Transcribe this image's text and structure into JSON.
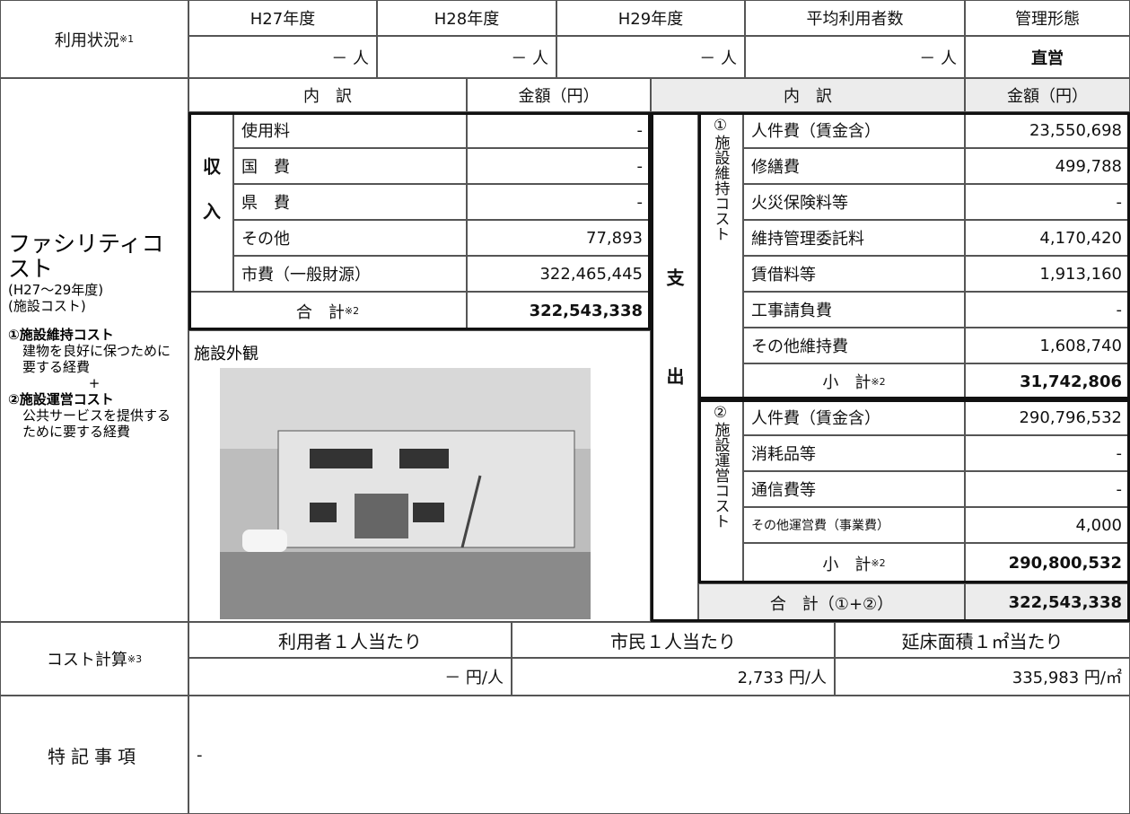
{
  "usage": {
    "label": "利用状況",
    "note": "※1",
    "headers": [
      "H27年度",
      "H28年度",
      "H29年度",
      "平均利用者数",
      "管理形態"
    ],
    "values": [
      "－ 人",
      "－ 人",
      "－ 人",
      "－ 人",
      "直営"
    ]
  },
  "facility": {
    "title": "ファシリティコスト",
    "period": "(H27～29年度)",
    "sub": "(施設コスト)",
    "lines": [
      "①施設維持コスト",
      "建物を良好に保つために要する経費",
      "+",
      "②施設運営コスト",
      "公共サービスを提供するために要する経費"
    ]
  },
  "revenue": {
    "headers": [
      "内　訳",
      "金額（円）"
    ],
    "side": "収入",
    "items": [
      {
        "name": "使用料",
        "amount": "-"
      },
      {
        "name": "国　費",
        "amount": "-"
      },
      {
        "name": "県　費",
        "amount": "-"
      },
      {
        "name": "その他",
        "amount": "77,893"
      },
      {
        "name": "市費（一般財源）",
        "amount": "322,465,445"
      }
    ],
    "total": {
      "label": "合　計",
      "note": "※2",
      "amount": "322,543,338"
    }
  },
  "photo": {
    "caption": "施設外観"
  },
  "expenditure": {
    "headers": [
      "内　訳",
      "金額（円）"
    ],
    "side": "支出",
    "groups": [
      {
        "label": "①施設維持コスト",
        "items": [
          {
            "name": "人件費（賃金含）",
            "amount": "23,550,698"
          },
          {
            "name": "修繕費",
            "amount": "499,788"
          },
          {
            "name": "火災保険料等",
            "amount": "-"
          },
          {
            "name": "維持管理委託料",
            "amount": "4,170,420"
          },
          {
            "name": "賃借料等",
            "amount": "1,913,160"
          },
          {
            "name": "工事請負費",
            "amount": "-"
          },
          {
            "name": "その他維持費",
            "amount": "1,608,740"
          }
        ],
        "subtotal": {
          "label": "小　計",
          "note": "※2",
          "amount": "31,742,806"
        }
      },
      {
        "label": "②施設運営コスト",
        "items": [
          {
            "name": "人件費（賃金含）",
            "amount": "290,796,532"
          },
          {
            "name": "消耗品等",
            "amount": "-"
          },
          {
            "name": "通信費等",
            "amount": "-"
          },
          {
            "name": "その他運営費（事業費）",
            "amount": "4,000"
          }
        ],
        "subtotal": {
          "label": "小　計",
          "note": "※2",
          "amount": "290,800,532"
        }
      }
    ],
    "total": {
      "label": "合　計（①+②）",
      "amount": "322,543,338"
    }
  },
  "cost": {
    "label": "コスト計算",
    "note": "※3",
    "headers": [
      "利用者１人当たり",
      "市民１人当たり",
      "延床面積１㎡当たり"
    ],
    "values": [
      "－ 円/人",
      "2,733 円/人",
      "335,983 円/㎡"
    ]
  },
  "notes": {
    "label": "特記事項",
    "text": "-"
  }
}
